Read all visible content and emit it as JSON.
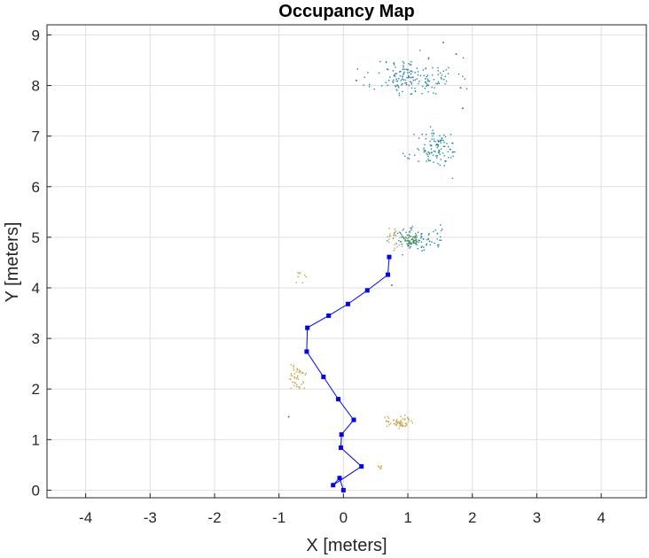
{
  "chart_data": {
    "type": "scatter",
    "title": "Occupancy Map",
    "xlabel": "X [meters]",
    "ylabel": "Y [meters]",
    "xlim": [
      -4.6,
      4.7
    ],
    "ylim": [
      -0.15,
      9.2
    ],
    "xticks": [
      -4,
      -3,
      -2,
      -1,
      0,
      1,
      2,
      3,
      4
    ],
    "yticks": [
      0,
      1,
      2,
      3,
      4,
      5,
      6,
      7,
      8,
      9
    ],
    "grid": true,
    "legend": "none",
    "colors": {
      "trajectory": "#0000ff",
      "cluster_teal": "#1f8a9a",
      "cluster_blue": "#2a6fa8",
      "cluster_green": "#3a8a3a",
      "cluster_gold": "#c8a040",
      "cluster_gray": "#555555"
    },
    "series": [
      {
        "kind": "line",
        "color_key": "trajectory",
        "x": [
          0.0,
          -0.06,
          -0.16,
          0.28,
          -0.04,
          -0.03,
          0.16,
          -0.08,
          -0.31,
          -0.57,
          -0.56,
          -0.23,
          0.07,
          0.37,
          0.69,
          0.71
        ],
        "y": [
          0.0,
          0.24,
          0.1,
          0.47,
          0.84,
          1.1,
          1.39,
          1.8,
          2.24,
          2.74,
          3.21,
          3.45,
          3.68,
          3.95,
          4.26,
          4.61
        ]
      },
      {
        "kind": "cluster",
        "color_key": "cluster_teal",
        "cx": 1.12,
        "cy": 8.15,
        "sx": 0.32,
        "sy": 0.2,
        "n": 140,
        "seed": 11
      },
      {
        "kind": "cluster",
        "color_key": "cluster_blue",
        "cx": 0.95,
        "cy": 8.2,
        "sx": 0.15,
        "sy": 0.12,
        "n": 30,
        "seed": 12
      },
      {
        "kind": "cluster",
        "color_key": "cluster_teal",
        "cx": 1.45,
        "cy": 6.72,
        "sx": 0.17,
        "sy": 0.18,
        "n": 110,
        "seed": 21
      },
      {
        "kind": "cluster",
        "color_key": "cluster_teal",
        "cx": 1.15,
        "cy": 4.95,
        "sx": 0.22,
        "sy": 0.12,
        "n": 90,
        "seed": 31
      },
      {
        "kind": "cluster",
        "color_key": "cluster_green",
        "cx": 1.05,
        "cy": 4.98,
        "sx": 0.1,
        "sy": 0.06,
        "n": 40,
        "seed": 32
      },
      {
        "kind": "cluster",
        "color_key": "cluster_gold",
        "cx": 0.8,
        "cy": 4.95,
        "sx": 0.06,
        "sy": 0.12,
        "n": 20,
        "seed": 33
      },
      {
        "kind": "cluster",
        "color_key": "cluster_gold",
        "cx": -0.68,
        "cy": 4.2,
        "sx": 0.06,
        "sy": 0.1,
        "n": 8,
        "seed": 41
      },
      {
        "kind": "cluster",
        "color_key": "cluster_gold",
        "cx": -0.73,
        "cy": 2.22,
        "sx": 0.08,
        "sy": 0.14,
        "n": 45,
        "seed": 51
      },
      {
        "kind": "cluster",
        "color_key": "cluster_gold",
        "cx": 0.85,
        "cy": 1.35,
        "sx": 0.12,
        "sy": 0.07,
        "n": 55,
        "seed": 61
      },
      {
        "kind": "cluster",
        "color_key": "cluster_gold",
        "cx": 0.6,
        "cy": 0.48,
        "sx": 0.06,
        "sy": 0.03,
        "n": 6,
        "seed": 71
      },
      {
        "kind": "points",
        "color_key": "cluster_gray",
        "x": [
          1.55,
          1.75,
          0.75,
          -0.85,
          1.85,
          0.2
        ],
        "y": [
          8.85,
          8.62,
          4.05,
          1.45,
          7.55,
          8.1
        ]
      }
    ]
  }
}
